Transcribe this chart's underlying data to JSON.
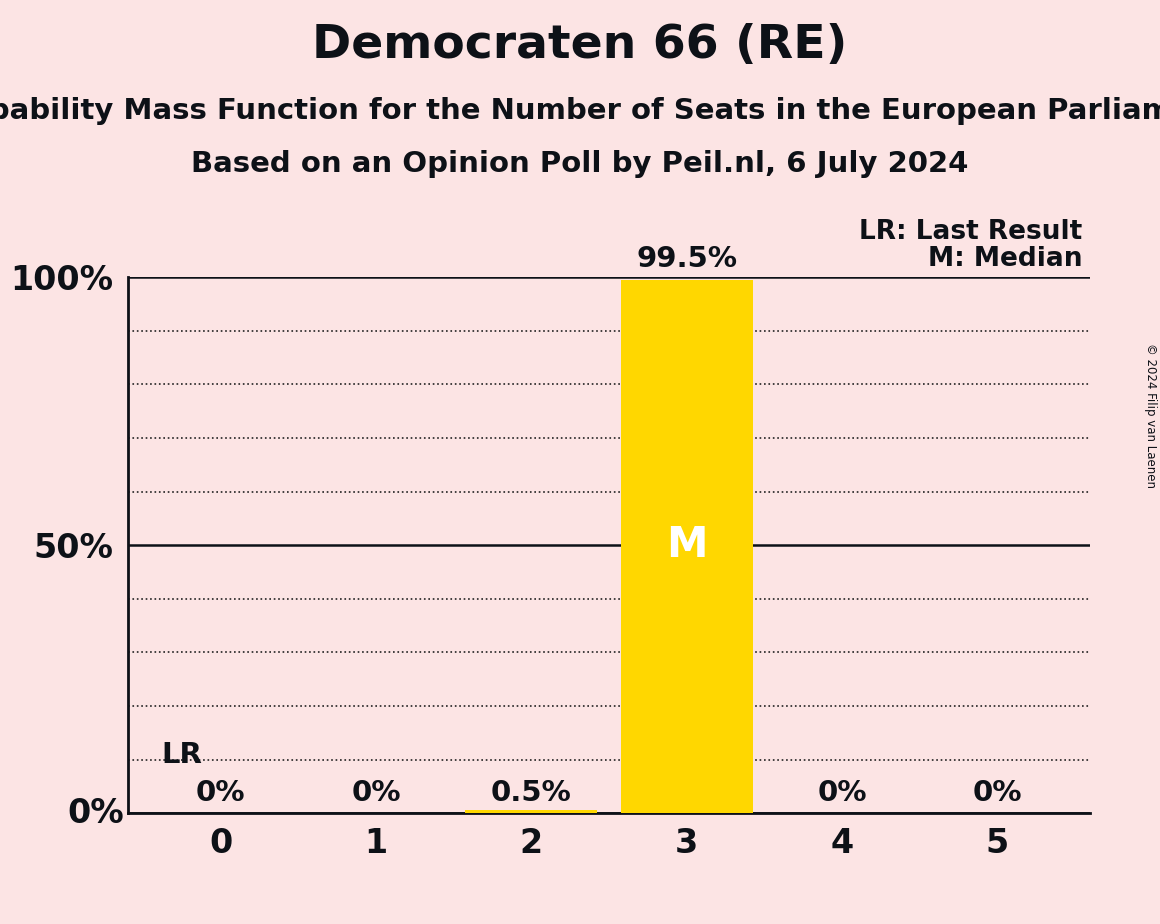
{
  "title": "Democraten 66 (RE)",
  "subtitle1": "Probability Mass Function for the Number of Seats in the European Parliament",
  "subtitle2": "Based on an Opinion Poll by Peil.nl, 6 July 2024",
  "copyright": "© 2024 Filip van Laenen",
  "background_color": "#fce4e4",
  "bar_color": "#FFD700",
  "categories": [
    0,
    1,
    2,
    3,
    4,
    5
  ],
  "values": [
    0.0,
    0.0,
    0.005,
    0.995,
    0.0,
    0.0
  ],
  "value_labels": [
    "0%",
    "0%",
    "0.5%",
    "99.5%",
    "0%",
    "0%"
  ],
  "median_seat": 3,
  "lr_seat": 0,
  "lr_label": "LR",
  "legend_lr": "LR: Last Result",
  "legend_m": "M: Median",
  "ylim": [
    0,
    1.0
  ],
  "yticks": [
    0.0,
    0.5,
    1.0
  ],
  "ytick_labels": [
    "",
    "50%",
    "100%"
  ],
  "title_fontsize": 34,
  "subtitle_fontsize": 21,
  "axis_label_fontsize": 24,
  "bar_label_fontsize": 21,
  "legend_fontsize": 19,
  "lr_fontsize": 21,
  "median_label_color": "#ffffff",
  "text_color": "#0d1117",
  "grid_positions": [
    0.1,
    0.2,
    0.3,
    0.4,
    0.6,
    0.7,
    0.8,
    0.9
  ],
  "solid_lines": [
    0.5,
    1.0
  ],
  "bar_width": 0.85
}
